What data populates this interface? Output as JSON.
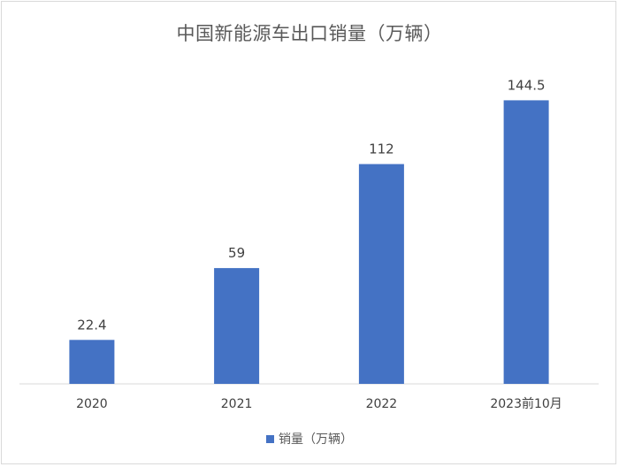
{
  "chart_data": {
    "type": "bar",
    "title": "中国新能源车出口销量（万辆）",
    "categories": [
      "2020",
      "2021",
      "2022",
      "2023前10月"
    ],
    "series": [
      {
        "name": "销量（万辆）",
        "values": [
          22.4,
          59,
          112,
          144.5
        ],
        "color": "#4472c4"
      }
    ],
    "data_labels": [
      "22.4",
      "59",
      "112",
      "144.5"
    ],
    "xlabel": "",
    "ylabel": "",
    "ylim": [
      0,
      160
    ],
    "grid": false,
    "y_axis_visible": false,
    "legend_position": "bottom"
  }
}
